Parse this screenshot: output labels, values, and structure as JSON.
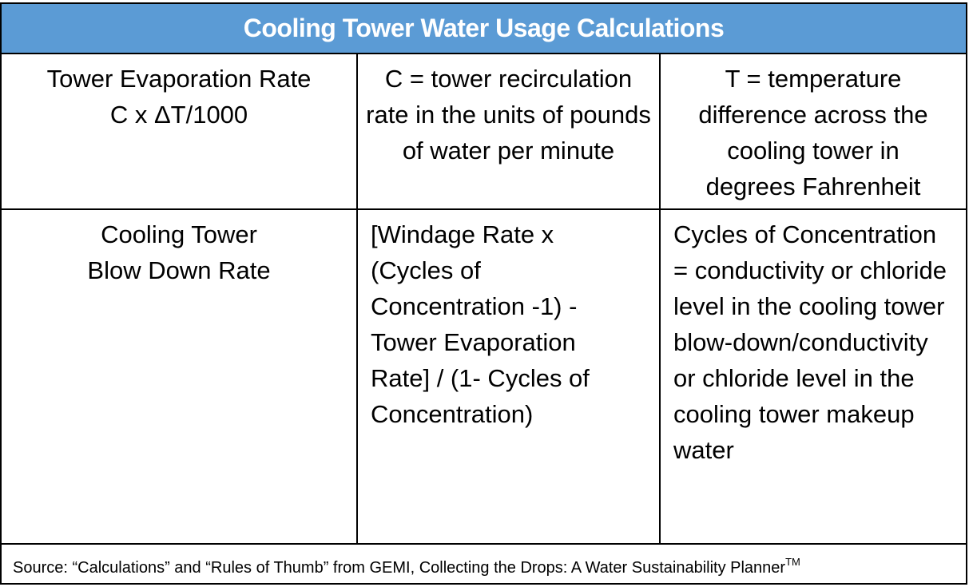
{
  "table": {
    "title": "Cooling Tower Water Usage Calculations",
    "header_color": "#5b9bd5",
    "rows": [
      {
        "col1_line1": "Tower Evaporation Rate",
        "col1_line2": "C x ΔT/1000",
        "col2": "C = tower recirculation rate in the units of pounds of water per minute",
        "col3": "T = temperature difference across the cooling tower in degrees Fahrenheit"
      },
      {
        "col1_line1": "Cooling Tower",
        "col1_line2": "Blow Down Rate",
        "col2": "[Windage Rate x (Cycles of Concentration -1) - Tower Evaporation Rate] / (1- Cycles of Concentration)",
        "col3": "Cycles of Concentration = conductivity or chloride level in the cooling tower blow-down/conductivity or chloride level in the cooling tower makeup water"
      }
    ],
    "source": "Source: “Calculations” and “Rules of Thumb” from GEMI, Collecting the Drops: A Water Sustainability Planner",
    "source_tm": "TM"
  }
}
